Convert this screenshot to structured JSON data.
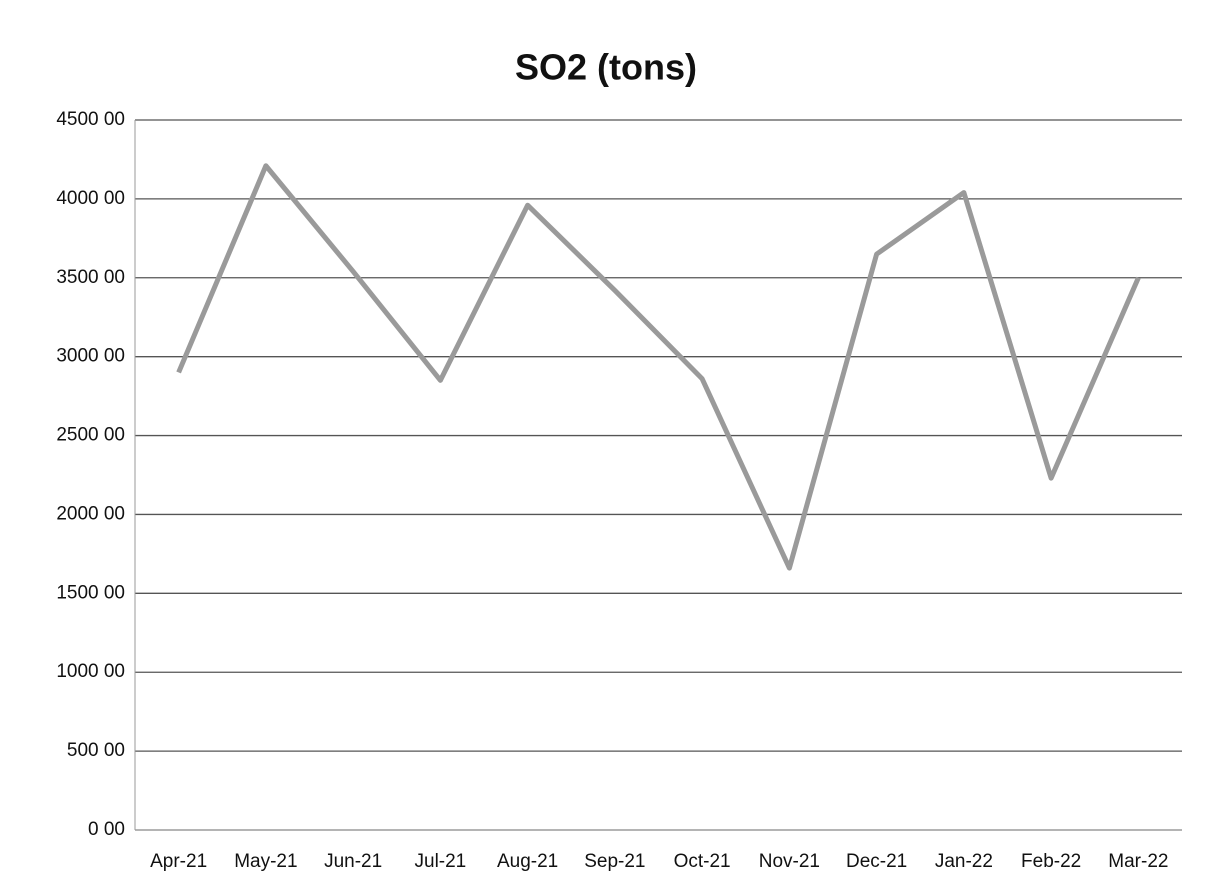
{
  "chart_data": {
    "type": "line",
    "title": "SO2 (tons)",
    "categories": [
      "Apr-21",
      "May-21",
      "Jun-21",
      "Jul-21",
      "Aug-21",
      "Sep-21",
      "Oct-21",
      "Nov-21",
      "Dec-21",
      "Jan-22",
      "Feb-22",
      "Mar-22"
    ],
    "series": [
      {
        "name": "SO2 (tons)",
        "color": "#9a9a9a",
        "values": [
          2900,
          4210,
          3540,
          2850,
          3960,
          3420,
          2860,
          1660,
          3650,
          4040,
          2230,
          3500
        ]
      }
    ],
    "ylim": [
      0,
      4500
    ],
    "yticks": [
      {
        "value": 0,
        "label": "0 00"
      },
      {
        "value": 500,
        "label": "500 00"
      },
      {
        "value": 1000,
        "label": "1000 00"
      },
      {
        "value": 1500,
        "label": "1500 00"
      },
      {
        "value": 2000,
        "label": "2000 00"
      },
      {
        "value": 2500,
        "label": "2500 00"
      },
      {
        "value": 3000,
        "label": "3000 00"
      },
      {
        "value": 3500,
        "label": "3500 00"
      },
      {
        "value": 4000,
        "label": "4000 00"
      },
      {
        "value": 4500,
        "label": "4500 00"
      }
    ],
    "grid": true
  }
}
